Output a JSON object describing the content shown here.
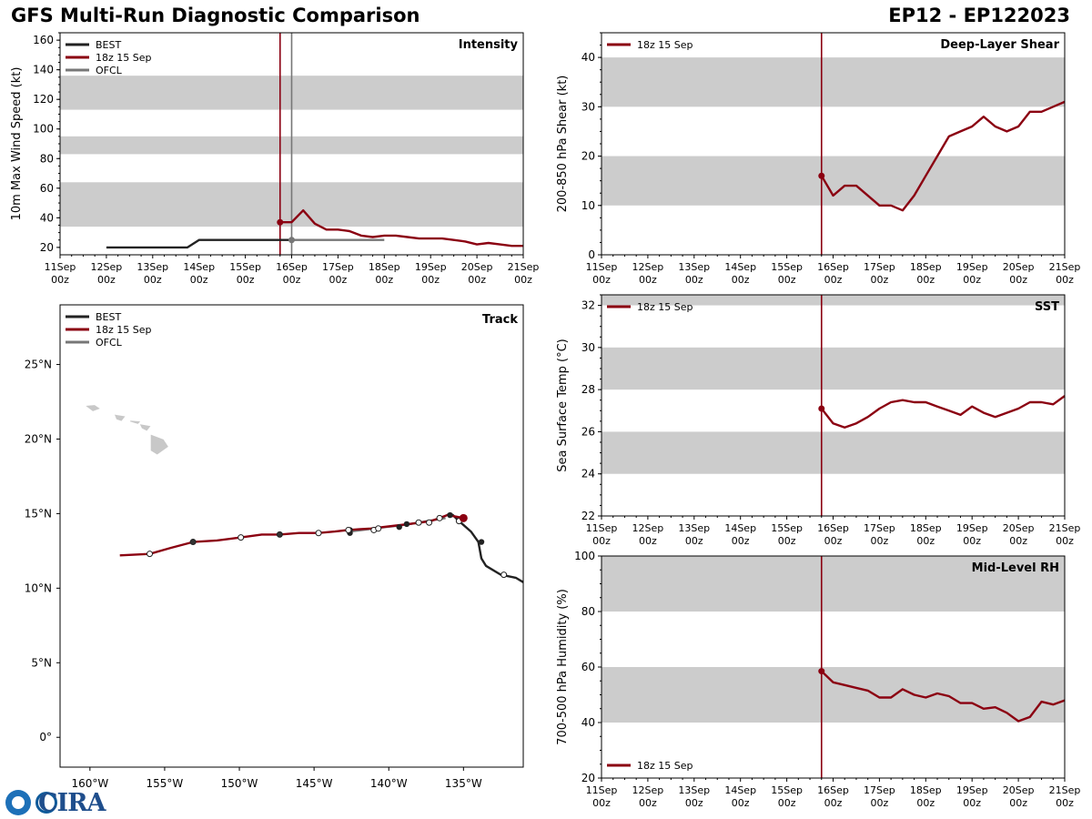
{
  "header": {
    "title_left": "GFS Multi-Run Diagnostic Comparison",
    "title_right": "EP12 - EP122023"
  },
  "logo": {
    "text": "CIRA"
  },
  "colors": {
    "best": "#222222",
    "run": "#8b0011",
    "ofcl": "#777777",
    "band": "#cccccc",
    "land": "#c8c8c8"
  },
  "time_axis": {
    "ticks": [
      "11Sep",
      "12Sep",
      "13Sep",
      "14Sep",
      "15Sep",
      "16Sep",
      "17Sep",
      "18Sep",
      "19Sep",
      "20Sep",
      "21Sep"
    ],
    "tick_sub": "00z",
    "range_hours": [
      0,
      240
    ],
    "init_hour": 114
  },
  "chart_data": [
    {
      "type": "line",
      "id": "intensity",
      "title": "Intensity",
      "ylabel": "10m Max Wind Speed (kt)",
      "ylim": [
        15,
        165
      ],
      "yticks": [
        20,
        40,
        60,
        80,
        100,
        120,
        140,
        160
      ],
      "bands": [
        [
          34,
          64
        ],
        [
          83,
          95
        ],
        [
          113,
          136
        ]
      ],
      "init_hour": 114,
      "ofcl_hour": 120,
      "legend": [
        "BEST",
        "18z 15 Sep",
        "OFCL"
      ],
      "series": [
        {
          "name": "BEST",
          "hours": [
            24,
            66,
            72,
            120
          ],
          "values": [
            20,
            20,
            25,
            25
          ]
        },
        {
          "name": "18z 15 Sep",
          "hours": [
            114,
            120,
            126,
            132,
            138,
            144,
            150,
            156,
            162,
            168,
            174,
            180,
            186,
            192,
            198,
            204,
            210,
            216,
            222,
            228,
            234,
            240
          ],
          "values": [
            37,
            37,
            45,
            36,
            32,
            32,
            31,
            28,
            27,
            28,
            28,
            27,
            26,
            26,
            26,
            25,
            24,
            22,
            23,
            22,
            21,
            21
          ]
        },
        {
          "name": "OFCL",
          "hours": [
            120,
            168
          ],
          "values": [
            25,
            25
          ]
        }
      ]
    },
    {
      "type": "line",
      "id": "shear",
      "title": "Deep-Layer Shear",
      "ylabel": "200-850 hPa Shear (kt)",
      "ylim": [
        0,
        45
      ],
      "yticks": [
        0,
        10,
        20,
        30,
        40
      ],
      "bands": [
        [
          10,
          20
        ],
        [
          30,
          40
        ]
      ],
      "init_hour": 114,
      "legend": [
        "18z 15 Sep"
      ],
      "series": [
        {
          "name": "18z 15 Sep",
          "hours": [
            114,
            120,
            126,
            132,
            138,
            144,
            150,
            156,
            162,
            168,
            174,
            180,
            186,
            192,
            198,
            204,
            210,
            216,
            222,
            228,
            234,
            240
          ],
          "values": [
            16,
            12,
            14,
            14,
            12,
            10,
            10,
            9,
            12,
            16,
            20,
            24,
            25,
            26,
            28,
            26,
            25,
            26,
            29,
            29,
            30,
            31
          ]
        }
      ]
    },
    {
      "type": "line",
      "id": "sst",
      "title": "SST",
      "ylabel": "Sea Surface Temp (°C)",
      "ylim": [
        22,
        32.5
      ],
      "yticks": [
        22,
        24,
        26,
        28,
        30,
        32
      ],
      "bands": [
        [
          24,
          26
        ],
        [
          28,
          30
        ],
        [
          32,
          32.5
        ]
      ],
      "init_hour": 114,
      "legend": [
        "18z 15 Sep"
      ],
      "series": [
        {
          "name": "18z 15 Sep",
          "hours": [
            114,
            120,
            126,
            132,
            138,
            144,
            150,
            156,
            162,
            168,
            174,
            180,
            186,
            192,
            198,
            204,
            210,
            216,
            222,
            228,
            234,
            240
          ],
          "values": [
            27.1,
            26.4,
            26.2,
            26.4,
            26.7,
            27.1,
            27.4,
            27.5,
            27.4,
            27.4,
            27.2,
            27.0,
            26.8,
            27.2,
            26.9,
            26.7,
            26.9,
            27.1,
            27.4,
            27.4,
            27.3,
            27.7
          ]
        }
      ]
    },
    {
      "type": "line",
      "id": "rh",
      "title": "Mid-Level RH",
      "ylabel": "700-500 hPa Humidity (%)",
      "ylim": [
        20,
        100
      ],
      "yticks": [
        20,
        40,
        60,
        80,
        100
      ],
      "bands": [
        [
          40,
          60
        ],
        [
          80,
          100
        ]
      ],
      "init_hour": 114,
      "legend": [
        "18z 15 Sep"
      ],
      "series": [
        {
          "name": "18z 15 Sep",
          "hours": [
            114,
            120,
            126,
            132,
            138,
            144,
            150,
            156,
            162,
            168,
            174,
            180,
            186,
            192,
            198,
            204,
            210,
            216,
            222,
            228,
            234,
            240
          ],
          "values": [
            58.5,
            54.5,
            53.5,
            52.5,
            51.5,
            49,
            49,
            52,
            50,
            49,
            50.5,
            49.5,
            47,
            47,
            45,
            45.5,
            43.5,
            40.5,
            42,
            47.5,
            46.5,
            48
          ]
        }
      ]
    },
    {
      "type": "scatter",
      "id": "track",
      "title": "Track",
      "xlim": [
        -162,
        -131
      ],
      "ylim": [
        -2,
        29
      ],
      "xticks": [
        -160,
        -155,
        -150,
        -145,
        -140,
        -135
      ],
      "xtick_labels": [
        "160°W",
        "155°W",
        "150°W",
        "145°W",
        "140°W",
        "135°W"
      ],
      "yticks": [
        0,
        5,
        10,
        15,
        20,
        25
      ],
      "ytick_labels": [
        "0°",
        "5°N",
        "10°N",
        "15°N",
        "20°N",
        "25°N"
      ],
      "legend": [
        "BEST",
        "18z 15 Sep",
        "OFCL"
      ],
      "series": [
        {
          "name": "BEST",
          "lon": [
            -131.0,
            -131.5,
            -132.5,
            -133.5,
            -133.8,
            -134.0,
            -134.5,
            -135.3,
            -135.7,
            -135.9,
            -136.1
          ],
          "lat": [
            10.4,
            10.7,
            10.9,
            11.5,
            12.0,
            13.1,
            13.8,
            14.5,
            14.9,
            15.0,
            14.9
          ]
        },
        {
          "name": "OFCL",
          "lon": [
            -136.2,
            -136.8,
            -137.4,
            -138.0,
            -138.6,
            -139.3,
            -140.2,
            -141.0,
            -141.8,
            -142.6
          ],
          "lat": [
            14.7,
            14.6,
            14.5,
            14.4,
            14.3,
            14.2,
            14.1,
            14.0,
            13.9,
            13.8
          ]
        },
        {
          "name": "18z 15 Sep",
          "lon": [
            -135.0,
            -135.5,
            -136.1,
            -136.6,
            -137.2,
            -137.9,
            -138.7,
            -139.5,
            -140.4,
            -141.2,
            -142.0,
            -142.7,
            -143.6,
            -144.7,
            -146.0,
            -147.3,
            -148.5,
            -149.9,
            -151.5,
            -153.1,
            -154.6,
            -156.0,
            -158.0
          ],
          "lat": [
            14.7,
            14.8,
            14.9,
            14.7,
            14.5,
            14.4,
            14.3,
            14.2,
            14.1,
            14.0,
            13.95,
            13.9,
            13.8,
            13.7,
            13.7,
            13.6,
            13.6,
            13.4,
            13.2,
            13.1,
            12.7,
            12.3,
            12.2
          ]
        }
      ],
      "best_fixes": {
        "lon": [
          -133.8,
          -135.9,
          -138.8,
          -139.3,
          -142.6,
          -142.6
        ],
        "lat": [
          13.1,
          14.9,
          14.3,
          14.1,
          13.9,
          13.7
        ]
      },
      "run_fixes": {
        "lon": [
          -135.0,
          -136.6,
          -138.0,
          -141.0,
          -142.7,
          -144.7,
          -147.3,
          -149.9,
          -153.1,
          -156.0
        ],
        "lat": [
          14.7,
          14.7,
          14.4,
          13.9,
          13.9,
          13.7,
          13.6,
          13.4,
          13.1,
          12.3
        ],
        "filled": [
          true,
          false,
          false,
          false,
          false,
          false,
          true,
          false,
          true,
          false
        ]
      },
      "ofcl_fixes": {
        "lon": [
          -135.3,
          -137.3,
          -140.7,
          -132.3
        ],
        "lat": [
          14.5,
          14.4,
          14.0,
          10.9
        ]
      },
      "run_marker": {
        "lon": -135.0,
        "lat": 14.7
      }
    }
  ]
}
